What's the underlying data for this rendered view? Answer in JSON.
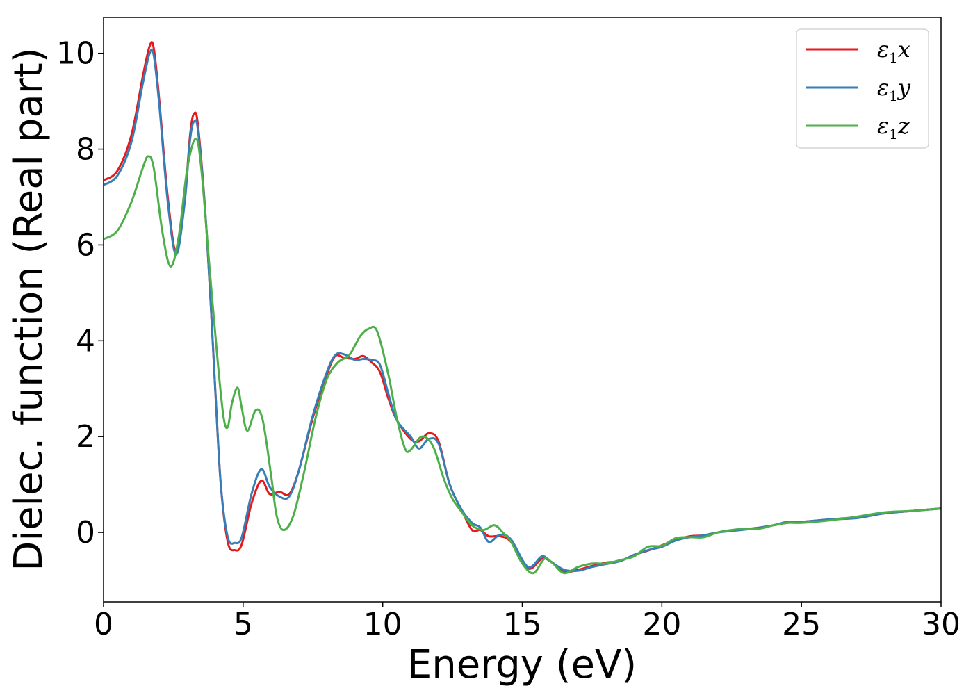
{
  "chart_data": {
    "type": "line",
    "xlabel": "Energy (eV)",
    "ylabel": "Dielec. function (Real part)",
    "xlim": [
      0,
      30
    ],
    "ylim": [
      -1.45,
      10.75
    ],
    "xticks": [
      0,
      5,
      10,
      15,
      20,
      25,
      30
    ],
    "yticks": [
      0,
      2,
      4,
      6,
      8,
      10
    ],
    "grid": false,
    "legend_position": "top-right",
    "series": [
      {
        "name": "ε₁x",
        "legend_base": "ε",
        "legend_sub": "1",
        "legend_var": "x",
        "color": "#e41a1c",
        "points": [
          [
            0,
            7.35
          ],
          [
            0.5,
            7.55
          ],
          [
            1.0,
            8.3
          ],
          [
            1.4,
            9.5
          ],
          [
            1.65,
            10.15
          ],
          [
            1.8,
            10.1
          ],
          [
            2.0,
            9.0
          ],
          [
            2.3,
            7.0
          ],
          [
            2.6,
            5.85
          ],
          [
            2.9,
            6.9
          ],
          [
            3.1,
            8.3
          ],
          [
            3.25,
            8.75
          ],
          [
            3.4,
            8.4
          ],
          [
            3.7,
            6.2
          ],
          [
            4.0,
            3.0
          ],
          [
            4.2,
            1.0
          ],
          [
            4.45,
            -0.2
          ],
          [
            4.7,
            -0.37
          ],
          [
            4.95,
            -0.25
          ],
          [
            5.3,
            0.6
          ],
          [
            5.65,
            1.08
          ],
          [
            5.95,
            0.8
          ],
          [
            6.3,
            0.85
          ],
          [
            6.65,
            0.8
          ],
          [
            7.0,
            1.3
          ],
          [
            7.5,
            2.4
          ],
          [
            8.0,
            3.3
          ],
          [
            8.3,
            3.68
          ],
          [
            8.6,
            3.65
          ],
          [
            9.0,
            3.62
          ],
          [
            9.3,
            3.68
          ],
          [
            9.6,
            3.55
          ],
          [
            9.9,
            3.35
          ],
          [
            10.2,
            2.8
          ],
          [
            10.5,
            2.35
          ],
          [
            11.0,
            1.95
          ],
          [
            11.3,
            1.9
          ],
          [
            11.65,
            2.07
          ],
          [
            12.0,
            1.9
          ],
          [
            12.4,
            1.0
          ],
          [
            12.8,
            0.5
          ],
          [
            13.2,
            0.05
          ],
          [
            13.5,
            0.05
          ],
          [
            13.8,
            -0.08
          ],
          [
            14.2,
            -0.08
          ],
          [
            14.6,
            -0.2
          ],
          [
            15.2,
            -0.75
          ],
          [
            15.7,
            -0.55
          ],
          [
            16.0,
            -0.6
          ],
          [
            16.5,
            -0.82
          ],
          [
            17.0,
            -0.78
          ],
          [
            17.5,
            -0.7
          ],
          [
            18.0,
            -0.63
          ],
          [
            18.5,
            -0.6
          ],
          [
            19.0,
            -0.47
          ],
          [
            19.5,
            -0.38
          ],
          [
            20.0,
            -0.27
          ],
          [
            20.5,
            -0.15
          ],
          [
            21.0,
            -0.08
          ],
          [
            21.5,
            -0.06
          ],
          [
            22.0,
            0.0
          ],
          [
            22.5,
            0.04
          ],
          [
            23.0,
            0.07
          ],
          [
            23.5,
            0.1
          ],
          [
            24.0,
            0.15
          ],
          [
            24.5,
            0.2
          ],
          [
            25.0,
            0.22
          ],
          [
            26.0,
            0.27
          ],
          [
            27.0,
            0.32
          ],
          [
            28.0,
            0.4
          ],
          [
            29.0,
            0.45
          ],
          [
            30.0,
            0.5
          ]
        ]
      },
      {
        "name": "ε₁y",
        "legend_base": "ε",
        "legend_sub": "1",
        "legend_var": "y",
        "color": "#377eb8",
        "points": [
          [
            0,
            7.25
          ],
          [
            0.5,
            7.45
          ],
          [
            1.0,
            8.15
          ],
          [
            1.4,
            9.35
          ],
          [
            1.65,
            10.0
          ],
          [
            1.8,
            9.95
          ],
          [
            2.0,
            8.9
          ],
          [
            2.3,
            6.9
          ],
          [
            2.6,
            5.8
          ],
          [
            2.9,
            6.85
          ],
          [
            3.1,
            8.2
          ],
          [
            3.25,
            8.58
          ],
          [
            3.4,
            8.3
          ],
          [
            3.7,
            6.2
          ],
          [
            4.0,
            3.0
          ],
          [
            4.2,
            1.0
          ],
          [
            4.45,
            -0.1
          ],
          [
            4.7,
            -0.22
          ],
          [
            4.95,
            -0.1
          ],
          [
            5.3,
            0.8
          ],
          [
            5.65,
            1.32
          ],
          [
            5.95,
            0.95
          ],
          [
            6.3,
            0.75
          ],
          [
            6.65,
            0.75
          ],
          [
            7.0,
            1.3
          ],
          [
            7.5,
            2.45
          ],
          [
            8.0,
            3.35
          ],
          [
            8.3,
            3.7
          ],
          [
            8.6,
            3.72
          ],
          [
            9.0,
            3.6
          ],
          [
            9.3,
            3.62
          ],
          [
            9.6,
            3.6
          ],
          [
            9.9,
            3.5
          ],
          [
            10.2,
            2.9
          ],
          [
            10.5,
            2.35
          ],
          [
            11.0,
            2.0
          ],
          [
            11.3,
            1.75
          ],
          [
            11.65,
            1.95
          ],
          [
            12.0,
            1.85
          ],
          [
            12.4,
            1.0
          ],
          [
            12.8,
            0.5
          ],
          [
            13.2,
            0.2
          ],
          [
            13.5,
            0.1
          ],
          [
            13.8,
            -0.2
          ],
          [
            14.2,
            -0.05
          ],
          [
            14.6,
            -0.15
          ],
          [
            15.2,
            -0.72
          ],
          [
            15.7,
            -0.5
          ],
          [
            16.0,
            -0.6
          ],
          [
            16.5,
            -0.78
          ],
          [
            17.0,
            -0.8
          ],
          [
            17.5,
            -0.72
          ],
          [
            18.0,
            -0.66
          ],
          [
            18.5,
            -0.6
          ],
          [
            19.0,
            -0.47
          ],
          [
            19.5,
            -0.37
          ],
          [
            20.0,
            -0.3
          ],
          [
            20.5,
            -0.17
          ],
          [
            21.0,
            -0.1
          ],
          [
            21.5,
            -0.06
          ],
          [
            22.0,
            0.0
          ],
          [
            22.5,
            0.03
          ],
          [
            23.0,
            0.06
          ],
          [
            23.5,
            0.1
          ],
          [
            24.0,
            0.15
          ],
          [
            24.5,
            0.22
          ],
          [
            25.0,
            0.22
          ],
          [
            26.0,
            0.27
          ],
          [
            27.0,
            0.3
          ],
          [
            28.0,
            0.4
          ],
          [
            29.0,
            0.45
          ],
          [
            30.0,
            0.5
          ]
        ]
      },
      {
        "name": "ε₁z",
        "legend_base": "ε",
        "legend_sub": "1",
        "legend_var": "z",
        "color": "#4daf4a",
        "points": [
          [
            0,
            6.12
          ],
          [
            0.5,
            6.3
          ],
          [
            1.0,
            6.9
          ],
          [
            1.4,
            7.6
          ],
          [
            1.6,
            7.85
          ],
          [
            1.8,
            7.6
          ],
          [
            2.1,
            6.3
          ],
          [
            2.4,
            5.55
          ],
          [
            2.7,
            6.2
          ],
          [
            3.0,
            7.6
          ],
          [
            3.3,
            8.22
          ],
          [
            3.5,
            7.6
          ],
          [
            3.8,
            5.5
          ],
          [
            4.1,
            3.5
          ],
          [
            4.3,
            2.4
          ],
          [
            4.45,
            2.2
          ],
          [
            4.6,
            2.7
          ],
          [
            4.8,
            3.02
          ],
          [
            4.95,
            2.6
          ],
          [
            5.15,
            2.12
          ],
          [
            5.45,
            2.55
          ],
          [
            5.7,
            2.35
          ],
          [
            6.0,
            1.2
          ],
          [
            6.2,
            0.35
          ],
          [
            6.45,
            0.05
          ],
          [
            6.8,
            0.35
          ],
          [
            7.2,
            1.3
          ],
          [
            7.6,
            2.4
          ],
          [
            8.0,
            3.2
          ],
          [
            8.4,
            3.55
          ],
          [
            8.8,
            3.7
          ],
          [
            9.2,
            4.1
          ],
          [
            9.5,
            4.25
          ],
          [
            9.8,
            4.2
          ],
          [
            10.2,
            3.3
          ],
          [
            10.5,
            2.4
          ],
          [
            10.8,
            1.75
          ],
          [
            11.0,
            1.72
          ],
          [
            11.4,
            2.0
          ],
          [
            11.8,
            1.8
          ],
          [
            12.2,
            1.1
          ],
          [
            12.5,
            0.7
          ],
          [
            12.8,
            0.45
          ],
          [
            13.2,
            0.15
          ],
          [
            13.6,
            0.05
          ],
          [
            14.0,
            0.15
          ],
          [
            14.3,
            0.0
          ],
          [
            14.6,
            -0.2
          ],
          [
            15.0,
            -0.65
          ],
          [
            15.4,
            -0.85
          ],
          [
            15.8,
            -0.55
          ],
          [
            16.1,
            -0.65
          ],
          [
            16.5,
            -0.85
          ],
          [
            17.0,
            -0.72
          ],
          [
            17.5,
            -0.65
          ],
          [
            18.0,
            -0.65
          ],
          [
            18.5,
            -0.58
          ],
          [
            19.0,
            -0.5
          ],
          [
            19.5,
            -0.3
          ],
          [
            20.0,
            -0.28
          ],
          [
            20.5,
            -0.12
          ],
          [
            21.0,
            -0.1
          ],
          [
            21.5,
            -0.1
          ],
          [
            22.0,
            0.0
          ],
          [
            22.5,
            0.05
          ],
          [
            23.0,
            0.08
          ],
          [
            23.5,
            0.08
          ],
          [
            24.0,
            0.15
          ],
          [
            24.5,
            0.2
          ],
          [
            25.0,
            0.2
          ],
          [
            26.0,
            0.25
          ],
          [
            27.0,
            0.33
          ],
          [
            28.0,
            0.42
          ],
          [
            29.0,
            0.45
          ],
          [
            30.0,
            0.5
          ]
        ]
      }
    ]
  }
}
